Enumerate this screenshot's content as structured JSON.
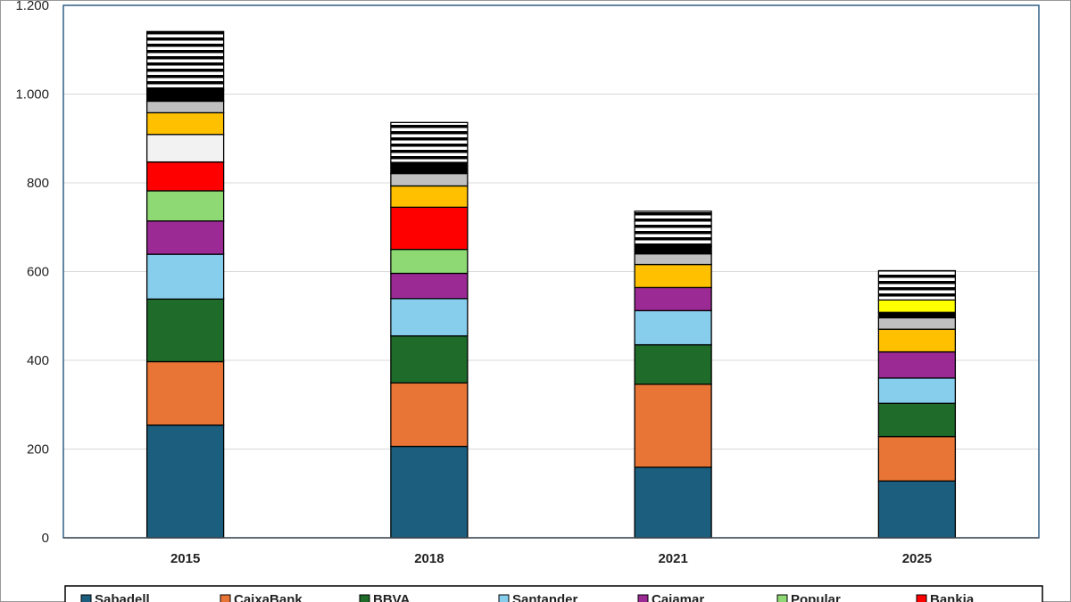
{
  "chart_data": {
    "type": "bar",
    "stacked": true,
    "categories": [
      "2015",
      "2018",
      "2021",
      "2025"
    ],
    "ylim": [
      0,
      1200
    ],
    "yticks": [
      {
        "value": 0,
        "label": "0"
      },
      {
        "value": 200,
        "label": "200"
      },
      {
        "value": 400,
        "label": "400"
      },
      {
        "value": 600,
        "label": "600"
      },
      {
        "value": 800,
        "label": "800"
      },
      {
        "value": 1000,
        "label": "1.000"
      },
      {
        "value": 1200,
        "label": "1.200"
      }
    ],
    "grid": true,
    "legend_position": "bottom",
    "series": [
      {
        "name": "Sabadell",
        "color": "#1b5e7e",
        "pattern": "solid",
        "values": [
          254,
          206,
          159,
          128
        ]
      },
      {
        "name": "CaixaBank",
        "color": "#e87535",
        "pattern": "solid",
        "values": [
          143,
          143,
          187,
          100
        ]
      },
      {
        "name": "BBVA",
        "color": "#1e6b2a",
        "pattern": "solid",
        "values": [
          141,
          106,
          89,
          75
        ]
      },
      {
        "name": "Santander",
        "color": "#87cdec",
        "pattern": "solid",
        "values": [
          101,
          84,
          77,
          57
        ]
      },
      {
        "name": "Cajamar",
        "color": "#9b2a94",
        "pattern": "solid",
        "values": [
          75,
          57,
          52,
          59
        ]
      },
      {
        "name": "Popular",
        "color": "#8fd974",
        "pattern": "solid",
        "values": [
          68,
          54,
          0,
          0
        ]
      },
      {
        "name": "Bankia",
        "color": "#ff0000",
        "pattern": "solid",
        "values": [
          65,
          95,
          0,
          0
        ]
      },
      {
        "name": "",
        "color": "#f2f2f2",
        "pattern": "solid",
        "values": [
          62,
          0,
          0,
          0
        ]
      },
      {
        "name": "",
        "color": "#ffc000",
        "pattern": "solid",
        "values": [
          49,
          48,
          52,
          51
        ]
      },
      {
        "name": "",
        "color": "#c0c0c0",
        "pattern": "solid",
        "values": [
          26,
          28,
          24,
          26
        ]
      },
      {
        "name": "",
        "color": "#000000",
        "pattern": "solid",
        "values": [
          25,
          25,
          16,
          12
        ]
      },
      {
        "name": "",
        "color": "#ffff00",
        "pattern": "solid",
        "values": [
          0,
          0,
          0,
          28
        ]
      },
      {
        "name": "",
        "color": "#000000",
        "pattern": "stripes",
        "values": [
          132,
          90,
          80,
          66
        ]
      }
    ]
  }
}
